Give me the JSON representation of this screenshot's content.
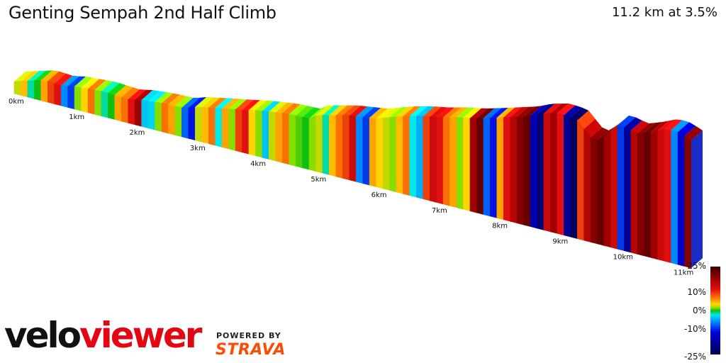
{
  "title": "Genting Sempah 2nd Half Climb",
  "summary": "11.2 km at 3.5%",
  "legend": {
    "labels": [
      "25%",
      "10%",
      "0%",
      "-10%",
      "-25%"
    ]
  },
  "branding": {
    "logo_part1": "velo",
    "logo_part2": "viewer",
    "powered_by": "POWERED BY",
    "strava": "STRAVA"
  },
  "colors": {
    "steep": "#8b0000",
    "flat": "#10c010",
    "descent": "#0000d8",
    "strava": "#fc4c02",
    "viewer": "#e30613"
  },
  "chart_data": {
    "type": "area",
    "distance_unit": "km",
    "tick_labels": [
      "0km",
      "1km",
      "2km",
      "3km",
      "4km",
      "5km",
      "6km",
      "7km",
      "8km",
      "9km",
      "10km",
      "11km"
    ],
    "ticks": [
      0,
      1,
      2,
      3,
      4,
      5,
      6,
      7,
      8,
      9,
      10,
      11
    ],
    "xlim": [
      0,
      11.2
    ],
    "gradient_range_pct": [
      -25,
      25
    ],
    "profile": {
      "distance_km": [
        0,
        0.5,
        0.8,
        1.0,
        1.5,
        1.9,
        2.1,
        2.5,
        2.8,
        3.0,
        3.5,
        3.8,
        4.0,
        4.5,
        4.9,
        5.0,
        5.5,
        6.0,
        6.4,
        6.7,
        7.0,
        7.3,
        7.6,
        8.0,
        8.5,
        8.7,
        9.0,
        9.3,
        9.6,
        9.8,
        10.0,
        10.3,
        10.5,
        10.8,
        11.0,
        11.2
      ],
      "relative_height": [
        0,
        8,
        4,
        6,
        5,
        0,
        2,
        2,
        0,
        4,
        8,
        10,
        12,
        14,
        12,
        18,
        24,
        26,
        34,
        38,
        40,
        44,
        46,
        52,
        60,
        66,
        70,
        66,
        40,
        52,
        68,
        60,
        64,
        72,
        70,
        62
      ]
    },
    "segment_gradients_pct": [
      3,
      5,
      -2,
      0,
      6,
      10,
      12,
      -8,
      -12,
      2,
      4,
      8,
      2,
      -2,
      0,
      6,
      8,
      12,
      18,
      -5,
      -4,
      2,
      8,
      6,
      2,
      -10,
      -14,
      3,
      5,
      8,
      -3,
      6,
      2,
      10,
      12,
      4,
      2,
      -5,
      3,
      6,
      8,
      2,
      1,
      0,
      2,
      3,
      -2,
      5,
      8,
      10,
      14,
      -8,
      -12,
      6,
      4,
      3,
      2,
      5,
      8,
      -3,
      -6,
      10,
      14,
      12,
      8,
      6,
      2,
      4,
      18,
      22,
      -10,
      -14,
      6,
      12,
      16,
      20,
      22,
      -18,
      -22,
      14,
      18,
      12,
      -20,
      -24,
      10,
      16,
      20,
      22,
      18,
      14,
      -12,
      -20,
      16,
      20,
      22,
      18,
      14,
      12,
      -8,
      -16,
      20
    ]
  }
}
